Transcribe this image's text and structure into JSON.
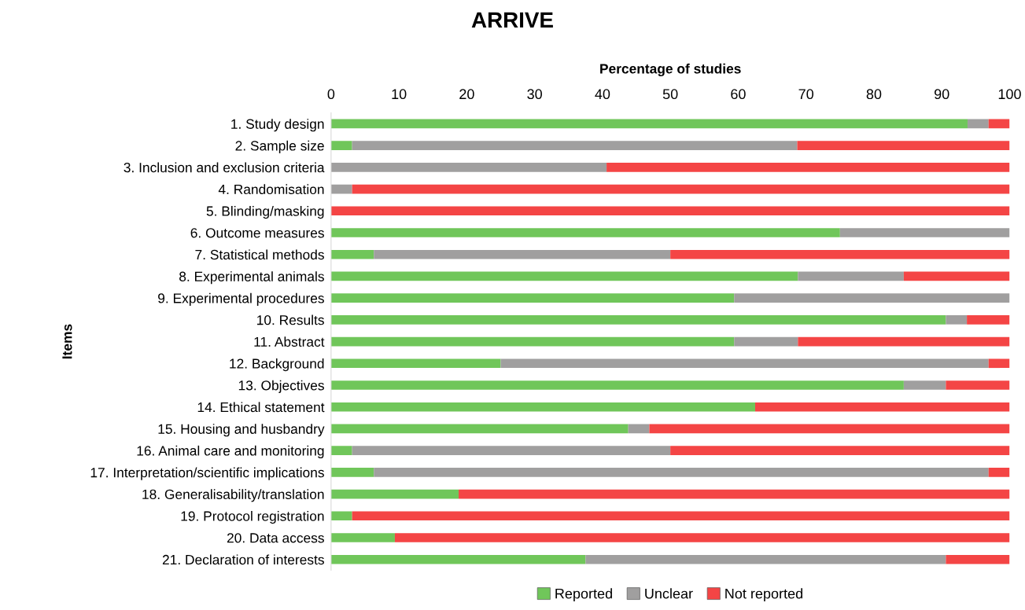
{
  "chart_data": {
    "type": "bar",
    "orientation": "horizontal",
    "stacked": true,
    "title": "ARRIVE",
    "xlabel": "Percentage of studies",
    "ylabel": "Items",
    "categories": [
      "1. Study design",
      "2. Sample size",
      "3. Inclusion and exclusion criteria",
      "4. Randomisation",
      "5. Blinding/masking",
      "6. Outcome measures",
      "7. Statistical methods",
      "8. Experimental animals",
      "9. Experimental procedures",
      "10. Results",
      "11. Abstract",
      "12. Background",
      "13. Objectives",
      "14. Ethical statement",
      "15. Housing and husbandry",
      "16. Animal care and monitoring",
      "17. Interpretation/scientific implications",
      "18. Generalisability/translation",
      "19. Protocol registration",
      "20. Data access",
      "21. Declaration of interests"
    ],
    "series": [
      {
        "name": "Reported",
        "color": "#70c65a",
        "values": [
          93.8,
          3.1,
          0,
          0,
          0,
          75,
          6.3,
          68.8,
          59.4,
          90.6,
          59.4,
          25,
          84.4,
          62.5,
          43.8,
          3.1,
          6.3,
          18.8,
          3.1,
          9.4,
          37.5
        ]
      },
      {
        "name": "Unclear",
        "color": "#a09f9f",
        "values": [
          3.1,
          65.6,
          40.6,
          3.1,
          0,
          25,
          43.7,
          15.6,
          40.6,
          3.1,
          9.4,
          71.9,
          6.2,
          0,
          3.1,
          46.9,
          90.6,
          0,
          0,
          0,
          53.1
        ]
      },
      {
        "name": "Not reported",
        "color": "#f44545",
        "values": [
          3.1,
          31.3,
          59.4,
          96.9,
          100,
          0,
          50,
          15.6,
          0,
          6.3,
          31.2,
          3.1,
          9.4,
          37.5,
          53.1,
          50,
          3.1,
          81.2,
          96.9,
          90.6,
          9.4
        ]
      }
    ],
    "xlim": [
      0,
      100
    ],
    "xticks": [
      0,
      10,
      20,
      30,
      40,
      50,
      60,
      70,
      80,
      90,
      100
    ],
    "grid": false,
    "legend": "bottom"
  }
}
